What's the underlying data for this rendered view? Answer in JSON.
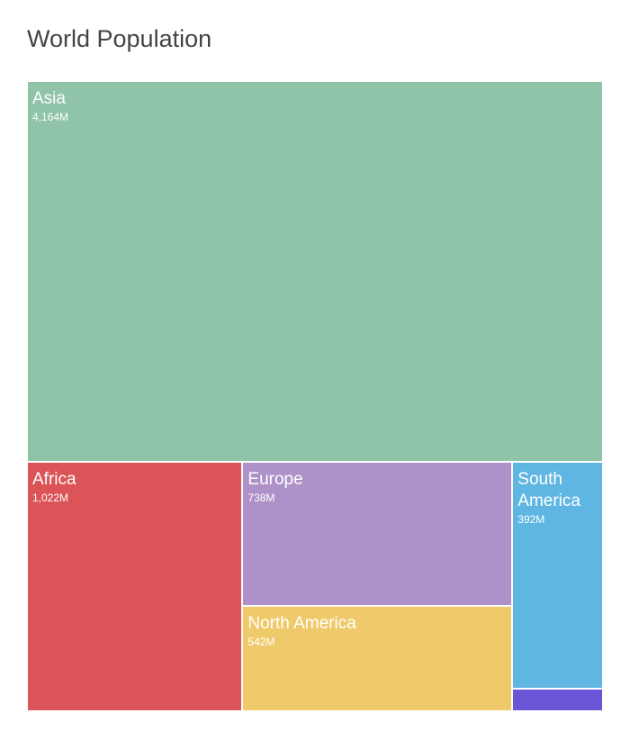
{
  "chart_data": {
    "type": "treemap",
    "title": "World Population",
    "items": [
      {
        "name": "Asia",
        "value": 4164,
        "value_label": "4,164M",
        "color": "#8fc4a8"
      },
      {
        "name": "Africa",
        "value": 1022,
        "value_label": "1,022M",
        "color": "#db5457"
      },
      {
        "name": "Europe",
        "value": 738,
        "value_label": "738M",
        "color": "#ae91c8"
      },
      {
        "name": "North America",
        "value": 542,
        "value_label": "542M",
        "color": "#efca6a"
      },
      {
        "name": "South America",
        "value": 392,
        "value_label": "392M",
        "color": "#5fb6e3"
      },
      {
        "name": "",
        "value": 38,
        "value_label": "",
        "color": "#6b54d6"
      }
    ]
  }
}
